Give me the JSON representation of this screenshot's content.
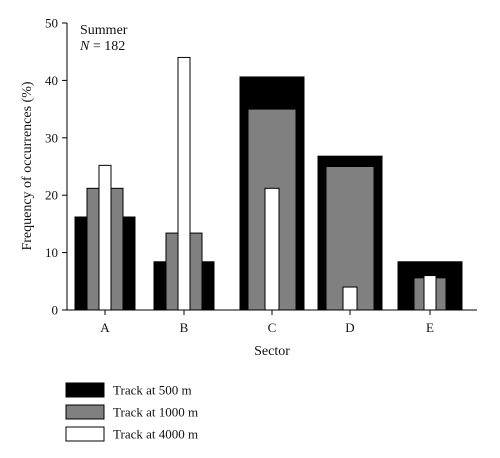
{
  "chart_data": {
    "type": "bar",
    "categories": [
      "A",
      "B",
      "C",
      "D",
      "E"
    ],
    "series": [
      {
        "name": "Track at 500 m",
        "color": "#000000",
        "values": [
          16.2,
          8.4,
          40.6,
          26.8,
          8.4
        ]
      },
      {
        "name": "Track at 1000 m",
        "color": "#808080",
        "values": [
          21.2,
          13.4,
          35.0,
          25.0,
          5.6
        ]
      },
      {
        "name": "Track at 4000 m",
        "color": "#ffffff",
        "values": [
          25.2,
          44.0,
          21.2,
          4.0,
          6.0
        ]
      }
    ],
    "xlabel": "Sector",
    "ylabel": "Frequency of occurrences (%)",
    "ylim": [
      0,
      50
    ],
    "yticks": [
      0,
      10,
      20,
      30,
      40,
      50
    ],
    "grid": false,
    "legend_position": "bottom-left",
    "annotation": {
      "line1": "Summer",
      "line2_var": "N",
      "line2_rest": " = 182"
    }
  }
}
